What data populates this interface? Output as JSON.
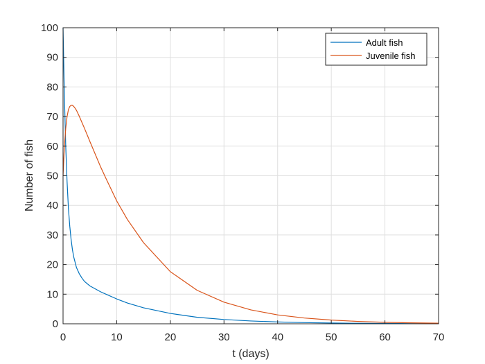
{
  "chart_data": {
    "type": "line",
    "xlabel": "t (days)",
    "ylabel": "Number of fish",
    "xlim": [
      0,
      70
    ],
    "ylim": [
      0,
      100
    ],
    "xticks": [
      0,
      10,
      20,
      30,
      40,
      50,
      60,
      70
    ],
    "yticks": [
      0,
      10,
      20,
      30,
      40,
      50,
      60,
      70,
      80,
      90,
      100
    ],
    "grid": true,
    "legend_position": "top-right",
    "series": [
      {
        "name": "Adult fish",
        "color": "#0072BD",
        "x": [
          0,
          0.25,
          0.5,
          0.75,
          1,
          1.25,
          1.5,
          1.75,
          2,
          2.5,
          3,
          3.5,
          4,
          5,
          6,
          7,
          8,
          10,
          12,
          15,
          20,
          25,
          30,
          35,
          40,
          45,
          50,
          55,
          60,
          65,
          70
        ],
        "y": [
          100,
          77,
          60,
          48,
          39,
          33,
          28.5,
          25,
          22.5,
          19,
          17,
          15.5,
          14.3,
          12.8,
          11.8,
          10.8,
          10,
          8.4,
          7,
          5.4,
          3.5,
          2.2,
          1.45,
          0.95,
          0.62,
          0.4,
          0.26,
          0.17,
          0.11,
          0.07,
          0.05
        ]
      },
      {
        "name": "Juvenile fish",
        "color": "#D95319",
        "x": [
          0,
          0.25,
          0.5,
          0.75,
          1,
          1.25,
          1.5,
          1.75,
          2,
          2.25,
          2.5,
          3,
          3.5,
          4,
          5,
          6,
          7,
          8,
          10,
          12,
          15,
          20,
          25,
          30,
          35,
          40,
          45,
          50,
          55,
          60,
          65,
          70
        ],
        "y": [
          50,
          60,
          66,
          70,
          72.3,
          73.4,
          73.8,
          73.8,
          73.4,
          72.8,
          72.1,
          70.2,
          68.1,
          66,
          61.6,
          57.3,
          53,
          49.1,
          41.5,
          35.2,
          27.4,
          17.6,
          11.3,
          7.3,
          4.7,
          3,
          1.95,
          1.25,
          0.8,
          0.5,
          0.32,
          0.2
        ]
      }
    ]
  }
}
